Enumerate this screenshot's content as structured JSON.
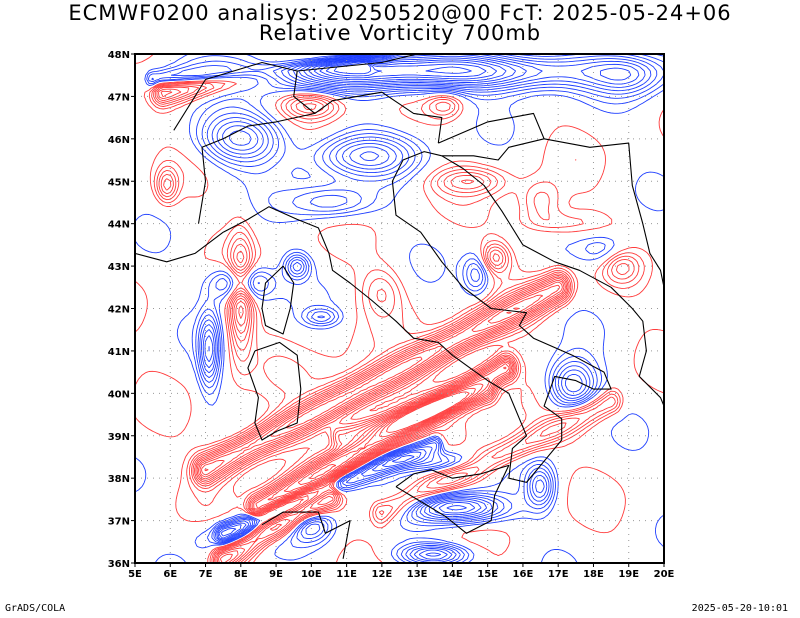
{
  "title_line1": "ECMWF0200 analisys: 20250520@00 FcT: 2025-05-24+06",
  "title_line2": "Relative Vorticity 700mb",
  "footer_left": "GrADS/COLA",
  "footer_right": "2025-05-20-10:01",
  "lon_labels": [
    "5E",
    "6E",
    "7E",
    "8E",
    "9E",
    "10E",
    "11E",
    "12E",
    "13E",
    "14E",
    "15E",
    "16E",
    "17E",
    "18E",
    "19E",
    "20E"
  ],
  "lat_labels": [
    "48N",
    "47N",
    "46N",
    "45N",
    "44N",
    "43N",
    "42N",
    "41N",
    "40N",
    "39N",
    "38N",
    "37N",
    "36N"
  ],
  "colors": {
    "positive_contour": "#ff3b3b",
    "negative_contour": "#1f3fff",
    "coastline": "#000000",
    "grid": "#999999"
  }
}
